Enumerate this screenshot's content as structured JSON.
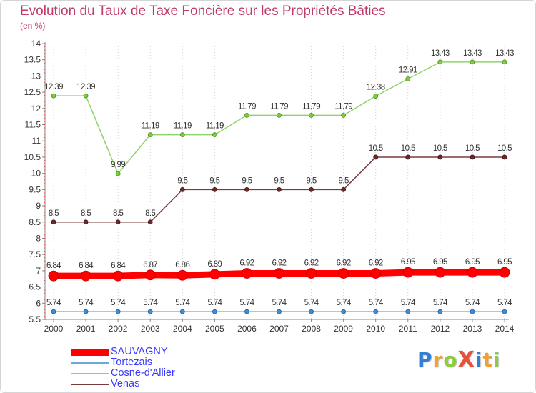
{
  "chart_data": {
    "type": "line",
    "title": "Evolution du Taux de Taxe Foncière sur les Propriétés Bâties",
    "ylabel": "(en %)",
    "xlabel": "",
    "ylim": [
      5.5,
      14
    ],
    "yticks": [
      "5.5",
      "6",
      "6.5",
      "7",
      "7.5",
      "8",
      "8.5",
      "9",
      "9.5",
      "10",
      "10.5",
      "11",
      "11.5",
      "12",
      "12.5",
      "13",
      "13.5",
      "14"
    ],
    "categories": [
      "2000",
      "2001",
      "2002",
      "2003",
      "2004",
      "2005",
      "2006",
      "2007",
      "2008",
      "2009",
      "2010",
      "2011",
      "2012",
      "2013",
      "2014"
    ],
    "series": [
      {
        "name": "SAUVAGNY",
        "color": "#ff0000",
        "values": [
          6.84,
          6.84,
          6.84,
          6.87,
          6.86,
          6.89,
          6.92,
          6.92,
          6.92,
          6.92,
          6.92,
          6.95,
          6.95,
          6.95,
          6.95
        ],
        "labels": [
          "6.84",
          "6.84",
          "6.84",
          "6.87",
          "6.86",
          "6.89",
          "6.92",
          "6.92",
          "6.92",
          "6.92",
          "6.92",
          "6.95",
          "6.95",
          "6.95",
          "6.95"
        ]
      },
      {
        "name": "Tortezais",
        "color": "#6ea8d8",
        "values": [
          5.74,
          5.74,
          5.74,
          5.74,
          5.74,
          5.74,
          5.74,
          5.74,
          5.74,
          5.74,
          5.74,
          5.74,
          5.74,
          5.74,
          5.74
        ],
        "labels": [
          "5.74",
          "5.74",
          "5.74",
          "5.74",
          "5.74",
          "5.74",
          "5.74",
          "5.74",
          "5.74",
          "5.74",
          "5.74",
          "5.74",
          "5.74",
          "5.74",
          "5.74"
        ]
      },
      {
        "name": "Cosne-d'Allier",
        "color": "#8fd36a",
        "values": [
          12.39,
          12.39,
          9.99,
          11.19,
          11.19,
          11.19,
          11.79,
          11.79,
          11.79,
          11.79,
          12.38,
          12.91,
          13.43,
          13.43,
          13.43
        ],
        "labels": [
          "12.39",
          "12.39",
          "9.99",
          "11.19",
          "11.19",
          "11.19",
          "11.79",
          "11.79",
          "11.79",
          "11.79",
          "12.38",
          "12.91",
          "13.43",
          "13.43",
          "13.43"
        ]
      },
      {
        "name": "Venas",
        "color": "#7a3b3b",
        "values": [
          8.5,
          8.5,
          8.5,
          8.5,
          9.5,
          9.5,
          9.5,
          9.5,
          9.5,
          9.5,
          10.5,
          10.5,
          10.5,
          10.5,
          10.5
        ],
        "labels": [
          "8.5",
          "8.5",
          "8.5",
          "8.5",
          "9.5",
          "9.5",
          "9.5",
          "9.5",
          "9.5",
          "9.5",
          "10.5",
          "10.5",
          "10.5",
          "10.5",
          "10.5"
        ]
      }
    ],
    "legend_position": "bottom-left"
  },
  "brand": {
    "text": "ProXiti",
    "letters": [
      {
        "char": "P",
        "color": "#2f7fd9"
      },
      {
        "char": "r",
        "color": "#f2a12c"
      },
      {
        "char": "o",
        "color": "#8ccc3f"
      },
      {
        "char": "X",
        "color": "#e8503a"
      },
      {
        "char": "i",
        "color": "#2f7fd9"
      },
      {
        "char": "t",
        "color": "#f2a12c"
      },
      {
        "char": "i",
        "color": "#8ccc3f"
      }
    ]
  }
}
